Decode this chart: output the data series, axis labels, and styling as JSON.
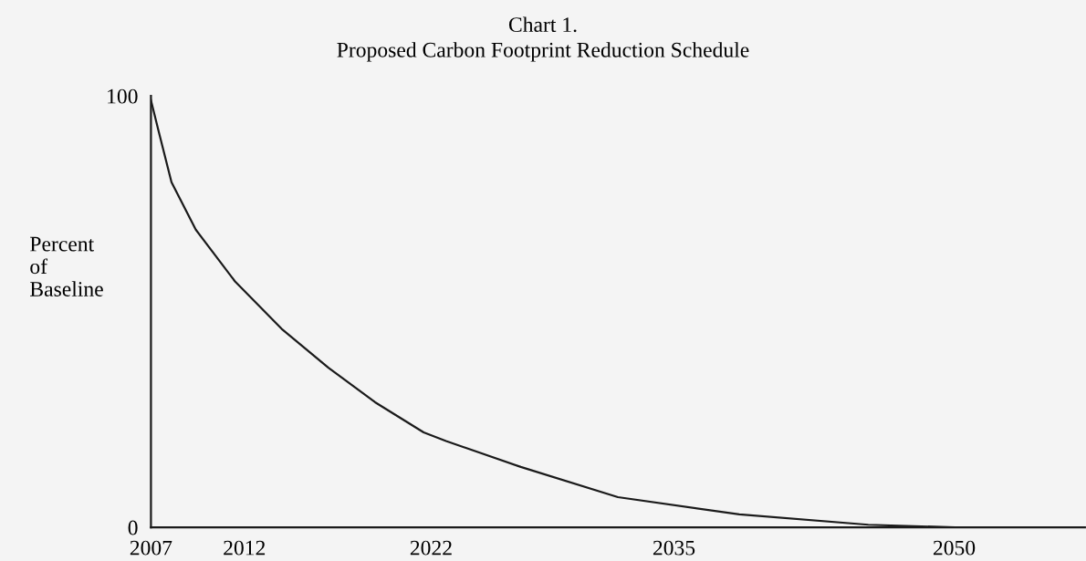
{
  "chart_data": {
    "type": "line",
    "title": "Chart 1.",
    "subtitle": "Proposed Carbon Footprint Reduction Schedule",
    "ylabel": "Percent\nof\nBaseline",
    "x": [
      2007,
      2007.4,
      2008.1,
      2009.4,
      2011.5,
      2014.0,
      2016.5,
      2019.0,
      2021.6,
      2022.8,
      2026.8,
      2032.0,
      2038.5,
      2045.4,
      2050
    ],
    "series": [
      {
        "color": "#1a1a1a",
        "values": [
          99,
          92,
          80,
          69,
          57,
          46,
          37,
          29,
          22,
          20,
          14,
          7,
          3,
          0.6,
          0
        ]
      }
    ],
    "xlim": [
      2007,
      2057
    ],
    "xticks": [
      2007,
      2012,
      2022,
      2035,
      2050
    ],
    "ylim": [
      0,
      100
    ],
    "yticks": [
      0,
      100
    ],
    "grid": false,
    "legend": false,
    "marker": "none",
    "line_style": "solid"
  }
}
